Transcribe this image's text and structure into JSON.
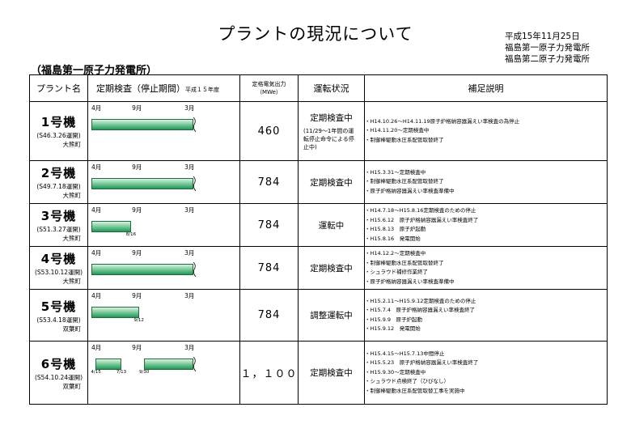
{
  "header": {
    "title": "プラントの現況について",
    "date": "平成15年11月25日",
    "org_lines": [
      "福島第一原子力発電所",
      "福島第二原子力発電所"
    ],
    "subtitle": "（福島第一原子力発電所）"
  },
  "table": {
    "col_plant": "プラント名",
    "col_inspection": "定期検査（停止期間）",
    "col_inspection_note": "平成１５年度",
    "col_output_line1": "定格電気出力",
    "col_output_line2": "（MWe）",
    "col_status": "運転状況",
    "col_notes": "補足説明",
    "month_labels": [
      "4月",
      "9月",
      "3月"
    ]
  },
  "units": [
    {
      "name": "1号機",
      "start": "(S46.3.26運開)",
      "location": "大熊町",
      "output": "460",
      "status": "定期検査中",
      "status_note": "(11/29～1年間の運転停止命令による停止中)",
      "inspection": {
        "start_month": 0,
        "end_month": 12,
        "continues": true
      },
      "date_labels": [],
      "notes": [
        "・H14.10.26～H14.11.19原子炉格納容器漏えい率検査の為停止",
        "・H14.11.20～定期検査中",
        "・制御棒駆動水圧系配管取替終了"
      ]
    },
    {
      "name": "2号機",
      "start": "(S49.7.18運開)",
      "location": "大熊町",
      "output": "784",
      "status": "定期検査中",
      "status_note": "",
      "inspection": {
        "start_month": 0,
        "end_month": 12,
        "continues": true
      },
      "date_labels": [],
      "notes": [
        "・H15.3.31～定期検査中",
        "・制御棒駆動水圧系配管取替終了",
        "・原子炉格納容器漏えい率検査準備中"
      ]
    },
    {
      "name": "3号機",
      "start": "(S51.3.27運開)",
      "location": "大熊町",
      "output": "784",
      "status": "運転中",
      "status_note": "",
      "inspection": {
        "start_month": 0,
        "end_month": 4.5,
        "continues": false
      },
      "date_labels": [
        {
          "text": "8/16",
          "month": 4.5
        }
      ],
      "notes": [
        "・H14.7.18～H15.8.16定期検査のための停止",
        "・H15.6.12　原子炉格納容器漏えい率検査終了",
        "・H15.8.13　原子炉起動",
        "・H15.8.16　発電開始"
      ]
    },
    {
      "name": "4号機",
      "start": "(S53.10.12運開)",
      "location": "大熊町",
      "output": "784",
      "status": "定期検査中",
      "status_note": "",
      "inspection": {
        "start_month": 0,
        "end_month": 12,
        "continues": true
      },
      "date_labels": [],
      "notes": [
        "・H14.12.2～定期検査中",
        "・制御棒駆動水圧系配管取替終了",
        "・シュラウド補修作業終了",
        "・原子炉格納容器漏えい率検査準備中"
      ]
    },
    {
      "name": "5号機",
      "start": "(S53.4.18運開)",
      "location": "双葉町",
      "output": "784",
      "status": "調整運転中",
      "status_note": "",
      "inspection": {
        "start_month": 0,
        "end_month": 5.4,
        "continues": false
      },
      "date_labels": [
        {
          "text": "9/12",
          "month": 5.4
        }
      ],
      "notes": [
        "・H15.2.11～H15.9.12定期検査のための停止",
        "・H15.7.4　原子炉格納容器漏えい率検査終了",
        "・H15.9.9　原子炉起動",
        "・H15.9.12　発電開始"
      ]
    },
    {
      "name": "6号機",
      "start": "(S54.10.24運開)",
      "location": "双葉町",
      "output": "１，１００",
      "status": "定期検査中",
      "status_note": "",
      "inspection": {
        "start_month": 0.5,
        "end_month": 3.4,
        "continues": true,
        "second_start": 6.0
      },
      "date_labels": [
        {
          "text": "4/15",
          "month": 0.5
        },
        {
          "text": "7/13",
          "month": 3.4
        },
        {
          "text": "9/30",
          "month": 6.0
        }
      ],
      "notes": [
        "・H15.4.15～H15.7.13中間停止",
        "・H15.5.23　原子炉格納容器漏えい率検査終了",
        "・H15.9.30～定期検査中",
        "・シュラウド点検終了（ひびなし）",
        "・制御棒駆動水圧系配管取替工事を実施中"
      ]
    }
  ]
}
